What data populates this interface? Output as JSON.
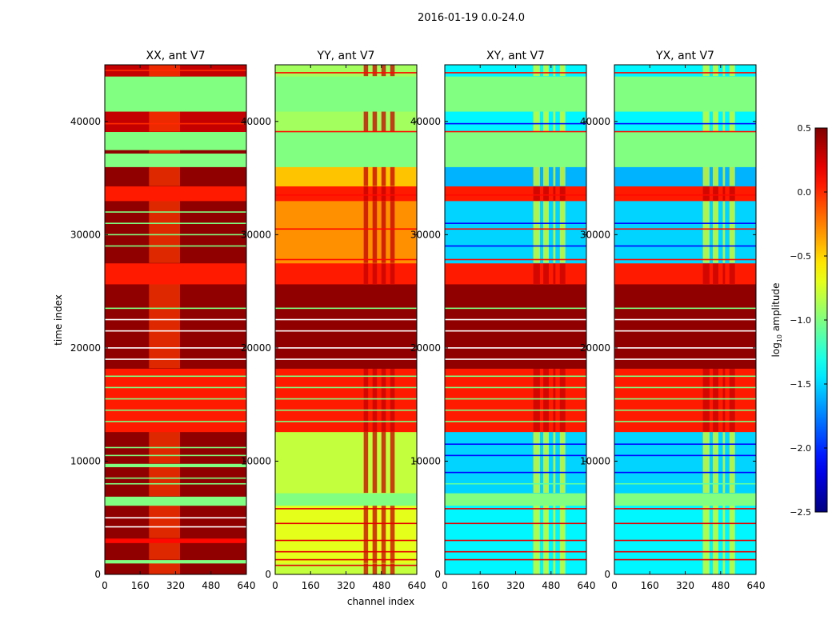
{
  "chart_data": {
    "type": "heatmap",
    "title": "2016-01-19 0.0-24.0",
    "xlabel": "channel index",
    "ylabel": "time index",
    "xlim": [
      0,
      640
    ],
    "ylim": [
      0,
      45000
    ],
    "xticks": [
      "0",
      "160",
      "320",
      "480",
      "640"
    ],
    "xtick_values": [
      0,
      160,
      320,
      480,
      640
    ],
    "yticks": [
      "0",
      "10000",
      "20000",
      "30000",
      "40000"
    ],
    "ytick_values": [
      0,
      10000,
      20000,
      30000,
      40000
    ],
    "colorbar": {
      "label_prefix": "log",
      "label_sub": "10",
      "label_suffix": " amplitude",
      "colormap": "jet",
      "range": [
        -2.5,
        0.5
      ],
      "ticks": [
        "0.5",
        "0.0",
        "−0.5",
        "−1.0",
        "−1.5",
        "−2.0",
        "−2.5"
      ],
      "tick_values": [
        0.5,
        0.0,
        -0.5,
        -1.0,
        -1.5,
        -2.0,
        -2.5
      ]
    },
    "panels": [
      {
        "title": "XX, ant V7",
        "highlight_channels": [
          200,
          340
        ],
        "rfi_channels": [],
        "bands": [
          [
            0,
            1000,
            0.45
          ],
          [
            1000,
            1300,
            -1.0
          ],
          [
            1300,
            2800,
            0.45
          ],
          [
            2800,
            3200,
            0.1
          ],
          [
            3200,
            6100,
            0.45
          ],
          [
            6100,
            6900,
            -1.0
          ],
          [
            6900,
            9500,
            0.45
          ],
          [
            9500,
            9800,
            -1.0
          ],
          [
            9800,
            12600,
            0.45
          ],
          [
            12600,
            18200,
            0.05
          ],
          [
            18200,
            25650,
            0.45
          ],
          [
            25650,
            27500,
            0.05
          ],
          [
            27500,
            33000,
            0.45
          ],
          [
            33000,
            34300,
            0.05
          ],
          [
            34300,
            36000,
            0.45
          ],
          [
            36000,
            37200,
            -1.0
          ],
          [
            37200,
            37500,
            0.45
          ],
          [
            37500,
            39100,
            -1.0
          ],
          [
            39100,
            40900,
            0.3
          ],
          [
            40900,
            44000,
            -1.0
          ],
          [
            44000,
            45000,
            0.3
          ]
        ],
        "stripes": [
          [
            13500,
            -1.0
          ],
          [
            14500,
            -1.0
          ],
          [
            15500,
            -1.0
          ],
          [
            16500,
            -1.0
          ],
          [
            17500,
            -1.0
          ],
          [
            10500,
            -1.0
          ],
          [
            11200,
            -1.0
          ],
          [
            8000,
            -1.0
          ],
          [
            8500,
            -1.0
          ],
          [
            29000,
            -1.0
          ],
          [
            30000,
            -1.0
          ],
          [
            31000,
            -1.0
          ],
          [
            32000,
            -1.0
          ],
          [
            19000,
            null
          ],
          [
            20000,
            null
          ],
          [
            21500,
            null
          ],
          [
            22500,
            null
          ],
          [
            23500,
            -1.0
          ],
          [
            4200,
            null
          ],
          [
            5000,
            null
          ],
          [
            39800,
            0.0
          ],
          [
            44500,
            0.0
          ]
        ]
      },
      {
        "title": "YY, ant V7",
        "highlight_channels": [],
        "rfi_channels": [
          [
            400,
            420
          ],
          [
            440,
            460
          ],
          [
            480,
            500
          ],
          [
            520,
            540
          ]
        ],
        "bands": [
          [
            0,
            1000,
            -0.8
          ],
          [
            1000,
            6100,
            -0.7
          ],
          [
            6100,
            7200,
            -1.0
          ],
          [
            7200,
            12600,
            -0.8
          ],
          [
            12600,
            18200,
            0.05
          ],
          [
            18200,
            25650,
            0.45
          ],
          [
            25650,
            27500,
            0.05
          ],
          [
            27500,
            33000,
            -0.3
          ],
          [
            33000,
            34300,
            0.05
          ],
          [
            34300,
            36000,
            -0.45
          ],
          [
            36000,
            39100,
            -1.0
          ],
          [
            39100,
            40900,
            -0.9
          ],
          [
            40900,
            44000,
            -1.0
          ],
          [
            44000,
            45000,
            -0.9
          ]
        ],
        "stripes": [
          [
            13500,
            -1.0
          ],
          [
            14500,
            -1.0
          ],
          [
            15500,
            -1.0
          ],
          [
            16500,
            -1.0
          ],
          [
            17500,
            -1.0
          ],
          [
            19000,
            null
          ],
          [
            20000,
            null
          ],
          [
            21500,
            null
          ],
          [
            22500,
            null
          ],
          [
            23500,
            -1.0
          ],
          [
            5800,
            0.2
          ],
          [
            4500,
            0.2
          ],
          [
            3000,
            0.2
          ],
          [
            2000,
            0.2
          ],
          [
            1300,
            0.2
          ],
          [
            800,
            0.2
          ],
          [
            27800,
            0.1
          ],
          [
            30500,
            0.1
          ],
          [
            33500,
            0.1
          ],
          [
            39100,
            0.1
          ],
          [
            44300,
            0.1
          ]
        ]
      },
      {
        "title": "XY, ant V7",
        "highlight_channels": [],
        "rfi_channels": [
          [
            400,
            430
          ],
          [
            445,
            470
          ],
          [
            490,
            500
          ],
          [
            520,
            545
          ]
        ],
        "bands": [
          [
            0,
            6100,
            -1.4
          ],
          [
            6100,
            7200,
            -1.0
          ],
          [
            7200,
            12600,
            -1.5
          ],
          [
            12600,
            18200,
            0.05
          ],
          [
            18200,
            25650,
            0.45
          ],
          [
            25650,
            27500,
            0.05
          ],
          [
            27500,
            33000,
            -1.5
          ],
          [
            33000,
            34300,
            0.05
          ],
          [
            34300,
            36000,
            -1.6
          ],
          [
            36000,
            39100,
            -1.0
          ],
          [
            39100,
            40900,
            -1.4
          ],
          [
            40900,
            44000,
            -1.0
          ],
          [
            44000,
            45000,
            -1.4
          ]
        ],
        "stripes": [
          [
            13500,
            -1.0
          ],
          [
            14500,
            -1.0
          ],
          [
            15500,
            -1.0
          ],
          [
            16500,
            -1.0
          ],
          [
            17500,
            -1.0
          ],
          [
            19000,
            null
          ],
          [
            20000,
            null
          ],
          [
            21500,
            null
          ],
          [
            22500,
            null
          ],
          [
            23500,
            -1.0
          ],
          [
            5800,
            0.2
          ],
          [
            4500,
            0.2
          ],
          [
            3000,
            0.2
          ],
          [
            2000,
            0.2
          ],
          [
            1300,
            0.2
          ],
          [
            10500,
            -2.1
          ],
          [
            11500,
            -2.1
          ],
          [
            9000,
            -2.1
          ],
          [
            8000,
            -1.1
          ],
          [
            29000,
            -2.1
          ],
          [
            31000,
            -2.1
          ],
          [
            27800,
            0.1
          ],
          [
            30500,
            0.1
          ],
          [
            33500,
            0.1
          ],
          [
            39100,
            0.1
          ],
          [
            39800,
            -2.1
          ],
          [
            44300,
            0.1
          ]
        ]
      },
      {
        "title": "YX, ant V7",
        "highlight_channels": [],
        "rfi_channels": [
          [
            400,
            430
          ],
          [
            445,
            470
          ],
          [
            490,
            500
          ],
          [
            520,
            545
          ]
        ],
        "bands": [
          [
            0,
            6100,
            -1.4
          ],
          [
            6100,
            7200,
            -1.0
          ],
          [
            7200,
            12600,
            -1.5
          ],
          [
            12600,
            18200,
            0.05
          ],
          [
            18200,
            25650,
            0.45
          ],
          [
            25650,
            27500,
            0.05
          ],
          [
            27500,
            33000,
            -1.5
          ],
          [
            33000,
            34300,
            0.05
          ],
          [
            34300,
            36000,
            -1.6
          ],
          [
            36000,
            39100,
            -1.0
          ],
          [
            39100,
            40900,
            -1.4
          ],
          [
            40900,
            44000,
            -1.0
          ],
          [
            44000,
            45000,
            -1.4
          ]
        ],
        "stripes": [
          [
            13500,
            -1.0
          ],
          [
            14500,
            -1.0
          ],
          [
            15500,
            -1.0
          ],
          [
            16500,
            -1.0
          ],
          [
            17500,
            -1.0
          ],
          [
            19000,
            null
          ],
          [
            20000,
            null
          ],
          [
            21500,
            null
          ],
          [
            22500,
            null
          ],
          [
            23500,
            -1.0
          ],
          [
            5800,
            0.2
          ],
          [
            4500,
            0.2
          ],
          [
            3000,
            0.2
          ],
          [
            2000,
            0.2
          ],
          [
            1300,
            0.2
          ],
          [
            10500,
            -2.1
          ],
          [
            11500,
            -2.1
          ],
          [
            9000,
            -2.1
          ],
          [
            8000,
            -1.1
          ],
          [
            29000,
            -2.1
          ],
          [
            31000,
            -2.1
          ],
          [
            27800,
            0.1
          ],
          [
            30500,
            0.1
          ],
          [
            33500,
            0.1
          ],
          [
            39100,
            0.1
          ],
          [
            39800,
            -2.1
          ],
          [
            44300,
            0.1
          ]
        ]
      }
    ]
  }
}
